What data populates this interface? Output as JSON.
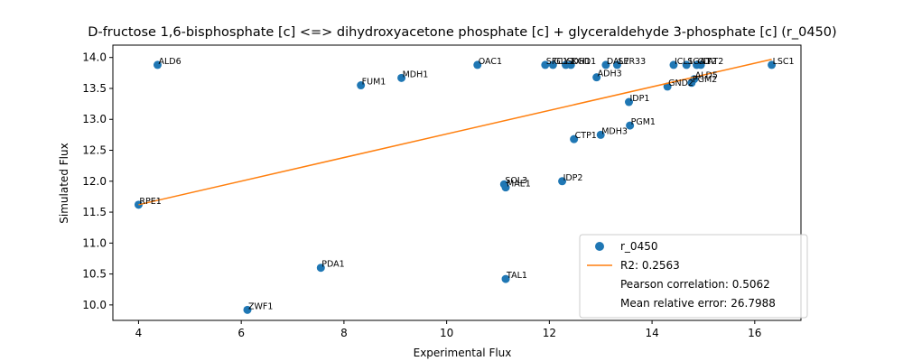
{
  "chart_data": {
    "type": "scatter",
    "title": "D-fructose 1,6-bisphosphate [c] <=> dihydroxyacetone phosphate [c] + glyceraldehyde 3-phosphate [c] (r_0450)",
    "xlabel": "Experimental Flux",
    "ylabel": "Simulated Flux",
    "xlim": [
      3.5,
      16.9
    ],
    "ylim": [
      9.75,
      14.2
    ],
    "xticks": [
      4,
      6,
      8,
      10,
      12,
      14,
      16
    ],
    "yticks": [
      10.0,
      10.5,
      11.0,
      11.5,
      12.0,
      12.5,
      13.0,
      13.5,
      14.0
    ],
    "grid": false,
    "legend_position": "lower-right",
    "scatter_color": "#1f77b4",
    "fit_color": "#ff7f0e",
    "series": [
      {
        "name": "r_0450",
        "points": [
          {
            "label": "RPE1",
            "x": 4.0,
            "y": 11.62
          },
          {
            "label": "ALD6",
            "x": 4.37,
            "y": 13.88
          },
          {
            "label": "ZWF1",
            "x": 6.12,
            "y": 9.92
          },
          {
            "label": "PDA1",
            "x": 7.55,
            "y": 10.6
          },
          {
            "label": "FUM1",
            "x": 8.33,
            "y": 13.55
          },
          {
            "label": "MDH1",
            "x": 9.12,
            "y": 13.67
          },
          {
            "label": "OAC1",
            "x": 10.6,
            "y": 13.88
          },
          {
            "label": "SOL3",
            "x": 11.12,
            "y": 11.95
          },
          {
            "label": "MAE1",
            "x": 11.15,
            "y": 11.9
          },
          {
            "label": "TAL1",
            "x": 11.15,
            "y": 10.42
          },
          {
            "label": "SFC1",
            "x": 11.92,
            "y": 13.88
          },
          {
            "label": "GLY1",
            "x": 12.07,
            "y": 13.88
          },
          {
            "label": "SDH1",
            "x": 12.32,
            "y": 13.88
          },
          {
            "label": "KGD1",
            "x": 12.42,
            "y": 13.88
          },
          {
            "label": "IDP2",
            "x": 12.25,
            "y": 12.0
          },
          {
            "label": "CTP1",
            "x": 12.48,
            "y": 12.68
          },
          {
            "label": "ADH3",
            "x": 12.92,
            "y": 13.68
          },
          {
            "label": "MDH3",
            "x": 13.0,
            "y": 12.75
          },
          {
            "label": "DAL7",
            "x": 13.1,
            "y": 13.88
          },
          {
            "label": "SER33",
            "x": 13.32,
            "y": 13.88
          },
          {
            "label": "IDP1",
            "x": 13.55,
            "y": 13.28
          },
          {
            "label": "PGM1",
            "x": 13.57,
            "y": 12.9
          },
          {
            "label": "GND2",
            "x": 14.3,
            "y": 13.53
          },
          {
            "label": "ICL1",
            "x": 14.42,
            "y": 13.88
          },
          {
            "label": "SGA1",
            "x": 14.67,
            "y": 13.88
          },
          {
            "label": "PGM2",
            "x": 14.77,
            "y": 13.59
          },
          {
            "label": "ALD5",
            "x": 14.82,
            "y": 13.65
          },
          {
            "label": "CIT2",
            "x": 14.87,
            "y": 13.88
          },
          {
            "label": "CAT2",
            "x": 14.95,
            "y": 13.88
          },
          {
            "label": "LSC1",
            "x": 16.33,
            "y": 13.88
          }
        ]
      },
      {
        "name": "R2: 0.2563",
        "line": {
          "x": [
            4.0,
            16.33
          ],
          "y": [
            11.62,
            13.97
          ]
        }
      }
    ],
    "legend": {
      "entries": [
        "r_0450",
        "R2: 0.2563"
      ],
      "extra": [
        "Pearson correlation: 0.5062",
        "Mean relative error: 26.7988"
      ]
    }
  }
}
